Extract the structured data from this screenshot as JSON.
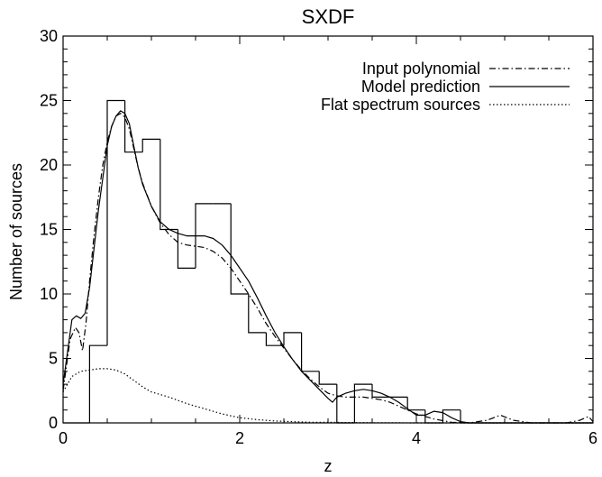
{
  "chart_data": {
    "type": "line",
    "title": "SXDF",
    "xlabel": "z",
    "ylabel": "Number of sources",
    "xlim": [
      0,
      6
    ],
    "ylim": [
      0,
      30
    ],
    "x_ticks": [
      0,
      2,
      4,
      6
    ],
    "y_ticks": [
      0,
      5,
      10,
      15,
      20,
      25,
      30
    ],
    "x_tick_labels": [
      "0",
      "2",
      "4",
      "6"
    ],
    "y_tick_labels": [
      "0",
      "5",
      "10",
      "15",
      "20",
      "25",
      "30"
    ],
    "grid": false,
    "legend_position": "top-right",
    "legend": [
      {
        "label": "Input polynomial",
        "style": "dashdot"
      },
      {
        "label": "Model prediction",
        "style": "solid"
      },
      {
        "label": "Flat spectrum sources",
        "style": "dotted"
      }
    ],
    "histogram": {
      "bin_edges": [
        0,
        0.1,
        0.2,
        0.3,
        0.5,
        0.7,
        0.9,
        1.1,
        1.3,
        1.5,
        1.7,
        1.9,
        2.1,
        2.3,
        2.5,
        2.7,
        2.9,
        3.1,
        3.3,
        3.5,
        3.7,
        3.9,
        4.1,
        4.3,
        4.5,
        6.0
      ],
      "counts": [
        0,
        0,
        0,
        6,
        25,
        21,
        22,
        15,
        12,
        17,
        17,
        10,
        7,
        6,
        7,
        4,
        3,
        0,
        3,
        2,
        2,
        1,
        0,
        1,
        0
      ]
    },
    "series": [
      {
        "name": "Input polynomial",
        "style": "dashdot",
        "x": [
          0.0,
          0.08,
          0.14,
          0.18,
          0.22,
          0.26,
          0.3,
          0.35,
          0.4,
          0.45,
          0.5,
          0.55,
          0.6,
          0.65,
          0.7,
          0.75,
          0.8,
          0.85,
          0.9,
          1.0,
          1.1,
          1.2,
          1.3,
          1.4,
          1.5,
          1.6,
          1.7,
          1.8,
          1.9,
          2.0,
          2.1,
          2.2,
          2.3,
          2.4,
          2.5,
          2.6,
          2.7,
          2.8,
          2.9,
          3.0,
          3.1,
          3.2,
          3.3,
          3.4,
          3.5,
          3.6,
          3.7,
          3.8,
          3.9,
          4.0,
          4.2,
          4.4,
          4.6,
          4.8,
          4.95,
          5.1,
          5.3,
          5.5,
          5.7,
          5.85,
          5.95,
          6.0
        ],
        "y": [
          2.5,
          6.5,
          7.4,
          7.0,
          5.6,
          7.8,
          11.0,
          14.5,
          17.5,
          20.0,
          21.8,
          23.0,
          23.8,
          24.0,
          23.7,
          22.8,
          21.3,
          19.8,
          18.6,
          16.8,
          15.5,
          14.6,
          14.0,
          13.8,
          13.7,
          13.6,
          13.3,
          12.8,
          12.0,
          11.0,
          10.0,
          8.9,
          7.7,
          6.7,
          5.8,
          4.9,
          4.1,
          3.4,
          2.8,
          2.3,
          2.1,
          2.0,
          2.0,
          2.0,
          1.9,
          1.8,
          1.6,
          1.3,
          1.0,
          0.7,
          0.3,
          0.05,
          0.0,
          0.2,
          0.6,
          0.2,
          0.0,
          0.0,
          0.0,
          0.2,
          0.5,
          0.1
        ]
      },
      {
        "name": "Model prediction",
        "style": "solid",
        "x": [
          0.0,
          0.05,
          0.1,
          0.15,
          0.2,
          0.25,
          0.3,
          0.35,
          0.4,
          0.45,
          0.5,
          0.55,
          0.6,
          0.65,
          0.7,
          0.75,
          0.8,
          0.85,
          0.9,
          1.0,
          1.1,
          1.2,
          1.3,
          1.4,
          1.5,
          1.6,
          1.7,
          1.8,
          1.9,
          2.0,
          2.1,
          2.2,
          2.3,
          2.4,
          2.5,
          2.6,
          2.7,
          2.8,
          2.9,
          3.0,
          3.05,
          3.1,
          3.2,
          3.3,
          3.4,
          3.5,
          3.6,
          3.7,
          3.8,
          3.9,
          4.0,
          4.1,
          4.2,
          4.3,
          4.4,
          4.5,
          4.6,
          4.7,
          4.8,
          5.0,
          5.5,
          6.0
        ],
        "y": [
          3.0,
          5.5,
          8.0,
          8.3,
          8.1,
          8.5,
          10.5,
          13.5,
          16.5,
          19.0,
          21.5,
          23.0,
          23.8,
          24.2,
          24.0,
          23.2,
          21.5,
          19.8,
          18.5,
          16.8,
          15.6,
          15.0,
          14.7,
          14.5,
          14.5,
          14.5,
          14.3,
          13.8,
          13.0,
          12.0,
          11.0,
          9.7,
          8.3,
          7.0,
          5.9,
          4.9,
          4.0,
          3.3,
          2.6,
          1.9,
          1.6,
          2.0,
          2.3,
          2.5,
          2.6,
          2.5,
          2.3,
          2.0,
          1.6,
          1.1,
          0.6,
          0.6,
          0.9,
          0.8,
          0.4,
          0.1,
          0.0,
          0.0,
          0.0,
          0.0,
          0.0,
          0.0
        ]
      },
      {
        "name": "Flat spectrum sources",
        "style": "dotted",
        "x": [
          0.0,
          0.1,
          0.2,
          0.3,
          0.4,
          0.5,
          0.6,
          0.7,
          0.8,
          0.9,
          1.0,
          1.2,
          1.4,
          1.6,
          1.8,
          2.0,
          2.2,
          2.4,
          2.6,
          2.8,
          3.0,
          3.2,
          3.4,
          3.6,
          3.8,
          4.0,
          4.5,
          5.0,
          6.0
        ],
        "y": [
          2.4,
          3.6,
          4.0,
          4.1,
          4.2,
          4.2,
          4.1,
          3.8,
          3.3,
          2.8,
          2.4,
          2.0,
          1.5,
          1.1,
          0.7,
          0.4,
          0.25,
          0.15,
          0.1,
          0.05,
          0.05,
          0.03,
          0.02,
          0.01,
          0.01,
          0.0,
          0.0,
          0.0,
          0.0
        ]
      }
    ]
  }
}
